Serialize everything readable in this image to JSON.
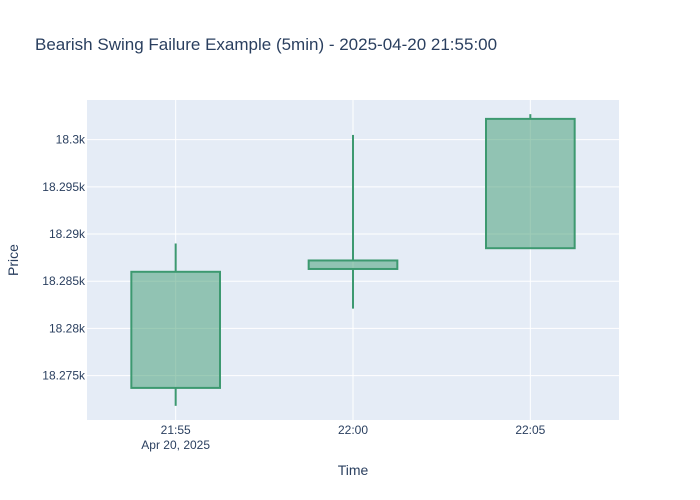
{
  "chart_data": {
    "type": "candlestick",
    "title": "Bearish Swing Failure Example (5min) - 2025-04-20 21:55:00",
    "xlabel": "Time",
    "ylabel": "Price",
    "ylim": [
      18270.3,
      18304.2
    ],
    "x_ticks": [
      {
        "label": "21:55",
        "sublabel": "Apr 20, 2025"
      },
      {
        "label": "22:00",
        "sublabel": ""
      },
      {
        "label": "22:05",
        "sublabel": ""
      }
    ],
    "y_ticks": [
      {
        "value": 18275,
        "label": "18.275k"
      },
      {
        "value": 18280,
        "label": "18.28k"
      },
      {
        "value": 18285,
        "label": "18.285k"
      },
      {
        "value": 18290,
        "label": "18.29k"
      },
      {
        "value": 18295,
        "label": "18.295k"
      },
      {
        "value": 18300,
        "label": "18.3k"
      }
    ],
    "candles": [
      {
        "time": "21:55",
        "open": 18273.7,
        "high": 18289.0,
        "low": 18271.8,
        "close": 18286.0
      },
      {
        "time": "22:00",
        "open": 18286.3,
        "high": 18300.5,
        "low": 18282.1,
        "close": 18287.2
      },
      {
        "time": "22:05",
        "open": 18288.5,
        "high": 18302.7,
        "low": 18288.5,
        "close": 18302.2
      }
    ],
    "colors": {
      "increasing_line": "#3d9970",
      "increasing_fill": "rgba(61,153,112,0.5)",
      "plot_bg": "#e5ecf6",
      "grid": "#ffffff",
      "text": "#2a3f5f"
    }
  }
}
